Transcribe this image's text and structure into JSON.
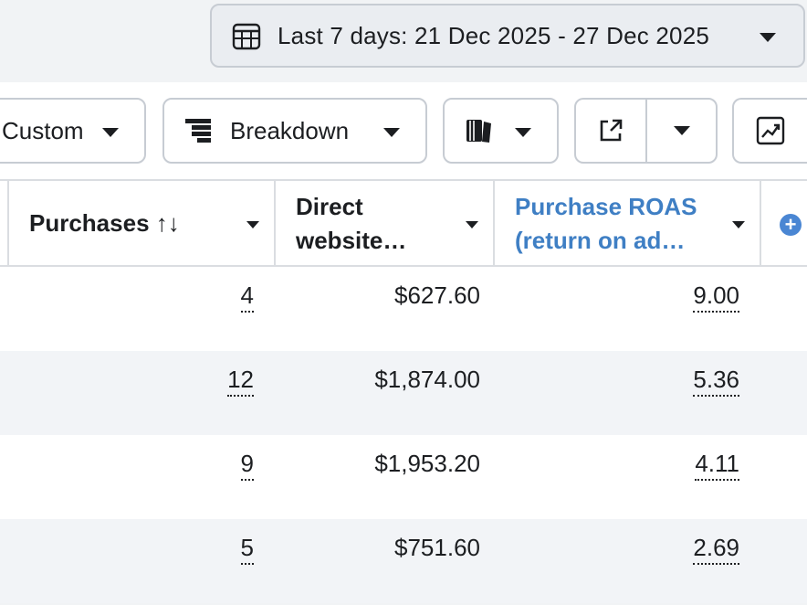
{
  "date_range": {
    "label": "Last 7 days: 21 Dec 2025 - 27 Dec 2025",
    "icon": "calendar-icon"
  },
  "toolbar": {
    "custom_label": "Custom",
    "breakdown_label": "Breakdown",
    "reports_icon": "reports-icon",
    "export_icon": "export-icon",
    "chart_icon": "trend-chart-icon"
  },
  "columns": {
    "purchases": "Purchases",
    "purchases_sort": "↑↓",
    "direct": "Direct website…",
    "direct_line1": "Direct",
    "direct_line2": "website…",
    "roas_line1": "Purchase ROAS",
    "roas_line2": "(return on ad…",
    "accent_color": "#3f7fc4"
  },
  "rows": [
    {
      "purchases": "4",
      "direct": "$627.60",
      "roas": "9.00"
    },
    {
      "purchases": "12",
      "direct": "$1,874.00",
      "roas": "5.36"
    },
    {
      "purchases": "9",
      "direct": "$1,953.20",
      "roas": "4.11"
    },
    {
      "purchases": "5",
      "direct": "$751.60",
      "roas": "2.69"
    }
  ]
}
